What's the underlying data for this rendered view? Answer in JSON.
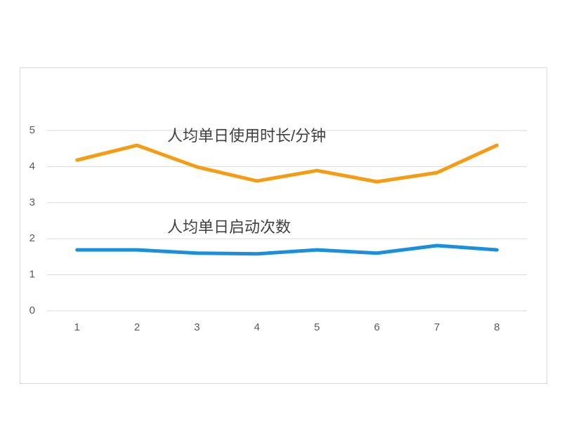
{
  "chart_data": {
    "type": "line",
    "categories": [
      "1",
      "2",
      "3",
      "4",
      "5",
      "6",
      "7",
      "8"
    ],
    "series": [
      {
        "name": "人均单日使用时长/分钟",
        "color": "#f59c13",
        "values": [
          4.18,
          4.59,
          3.99,
          3.6,
          3.89,
          3.58,
          3.83,
          4.59
        ]
      },
      {
        "name": "人均单日启动次数",
        "color": "#1b8fdc",
        "values": [
          1.69,
          1.69,
          1.6,
          1.58,
          1.69,
          1.6,
          1.81,
          1.69
        ]
      }
    ],
    "ylim": [
      0,
      5
    ],
    "yticks": [
      0,
      1,
      2,
      3,
      4,
      5
    ],
    "grid": true
  }
}
